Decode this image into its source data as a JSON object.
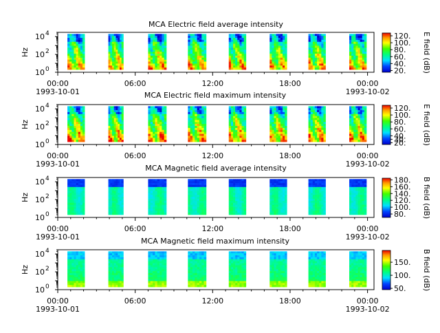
{
  "figure": {
    "background": "#ffffff"
  },
  "chart_data": [
    {
      "type": "heatmap",
      "title": "MCA  Electric field average intensity",
      "ylabel": "Hz",
      "y_scale": "log",
      "ylim": [
        1,
        30000
      ],
      "y_ticks": [
        1,
        100,
        10000
      ],
      "y_tick_labels": [
        {
          "base": "10",
          "exp": "0"
        },
        {
          "base": "10",
          "exp": "2"
        },
        {
          "base": "10",
          "exp": "4"
        }
      ],
      "x_ticks": [
        {
          "time": "00:00",
          "date": "1993-10-01"
        },
        {
          "time": "06:00",
          "date": ""
        },
        {
          "time": "12:00",
          "date": ""
        },
        {
          "time": "18:00",
          "date": ""
        },
        {
          "time": "00:00",
          "date": "1993-10-02"
        }
      ],
      "xlim": [
        "1993-10-01 00:00",
        "1993-10-02 00:30"
      ],
      "colorbar": {
        "label": "E field (dB)",
        "range": [
          15,
          128
        ],
        "ticks": [
          20,
          40,
          60,
          80,
          100,
          120
        ],
        "tick_labels": [
          "20.",
          "40.",
          "60.",
          "80.",
          "100.",
          "120."
        ]
      },
      "data_blocks": [
        {
          "start": "00:45",
          "end": "02:05"
        },
        {
          "start": "03:55",
          "end": "05:05"
        },
        {
          "start": "07:00",
          "end": "08:25"
        },
        {
          "start": "10:05",
          "end": "11:30"
        },
        {
          "start": "13:15",
          "end": "14:35"
        },
        {
          "start": "16:25",
          "end": "17:45"
        },
        {
          "start": "19:25",
          "end": "20:45"
        },
        {
          "start": "22:35",
          "end": "23:55"
        }
      ],
      "palette": "field_e_avg"
    },
    {
      "type": "heatmap",
      "title": "MCA  Electric field maximum intensity",
      "ylabel": "Hz",
      "y_scale": "log",
      "ylim": [
        1,
        30000
      ],
      "y_ticks": [
        1,
        100,
        10000
      ],
      "y_tick_labels": [
        {
          "base": "10",
          "exp": "0"
        },
        {
          "base": "10",
          "exp": "2"
        },
        {
          "base": "10",
          "exp": "4"
        }
      ],
      "x_ticks": [
        {
          "time": "00:00",
          "date": "1993-10-01"
        },
        {
          "time": "06:00",
          "date": ""
        },
        {
          "time": "12:00",
          "date": ""
        },
        {
          "time": "18:00",
          "date": ""
        },
        {
          "time": "00:00",
          "date": "1993-10-02"
        }
      ],
      "xlim": [
        "1993-10-01 00:00",
        "1993-10-02 00:30"
      ],
      "colorbar": {
        "label": "E field (dB)",
        "range": [
          15,
          128
        ],
        "ticks": [
          20,
          30,
          40,
          60,
          80,
          100,
          120
        ],
        "tick_labels": [
          "20.",
          "30.",
          "40.",
          "60.",
          "80.",
          "100.",
          "120."
        ]
      },
      "data_blocks": [
        {
          "start": "00:45",
          "end": "02:05"
        },
        {
          "start": "03:55",
          "end": "05:05"
        },
        {
          "start": "07:00",
          "end": "08:25"
        },
        {
          "start": "10:05",
          "end": "11:30"
        },
        {
          "start": "13:15",
          "end": "14:35"
        },
        {
          "start": "16:25",
          "end": "17:45"
        },
        {
          "start": "19:25",
          "end": "20:45"
        },
        {
          "start": "22:35",
          "end": "23:55"
        }
      ],
      "palette": "field_e_max"
    },
    {
      "type": "heatmap",
      "title": "MCA  Magnetic field average intensity",
      "ylabel": "Hz",
      "y_scale": "log",
      "ylim": [
        1,
        30000
      ],
      "y_ticks": [
        1,
        100,
        10000
      ],
      "y_tick_labels": [
        {
          "base": "10",
          "exp": "0"
        },
        {
          "base": "10",
          "exp": "2"
        },
        {
          "base": "10",
          "exp": "4"
        }
      ],
      "x_ticks": [
        {
          "time": "00:00",
          "date": "1993-10-01"
        },
        {
          "time": "06:00",
          "date": ""
        },
        {
          "time": "12:00",
          "date": ""
        },
        {
          "time": "18:00",
          "date": ""
        },
        {
          "time": "00:00",
          "date": "1993-10-02"
        }
      ],
      "xlim": [
        "1993-10-01 00:00",
        "1993-10-02 00:30"
      ],
      "colorbar": {
        "label": "B field (dB)",
        "range": [
          70,
          185
        ],
        "ticks": [
          80,
          100,
          120,
          140,
          160,
          180
        ],
        "tick_labels": [
          "80.",
          "100.",
          "120.",
          "140.",
          "160.",
          "180."
        ]
      },
      "data_blocks": [
        {
          "start": "00:45",
          "end": "02:05"
        },
        {
          "start": "03:55",
          "end": "05:05"
        },
        {
          "start": "07:00",
          "end": "08:25"
        },
        {
          "start": "10:05",
          "end": "11:30"
        },
        {
          "start": "13:15",
          "end": "14:35"
        },
        {
          "start": "16:25",
          "end": "17:45"
        },
        {
          "start": "19:25",
          "end": "20:45"
        },
        {
          "start": "22:35",
          "end": "23:55"
        }
      ],
      "palette": "field_b_avg"
    },
    {
      "type": "heatmap",
      "title": "MCA  Magnetic field maximum intensity",
      "ylabel": "Hz",
      "y_scale": "log",
      "ylim": [
        1,
        30000
      ],
      "y_ticks": [
        1,
        100,
        10000
      ],
      "y_tick_labels": [
        {
          "base": "10",
          "exp": "0"
        },
        {
          "base": "10",
          "exp": "2"
        },
        {
          "base": "10",
          "exp": "4"
        }
      ],
      "x_ticks": [
        {
          "time": "00:00",
          "date": "1993-10-01"
        },
        {
          "time": "06:00",
          "date": ""
        },
        {
          "time": "12:00",
          "date": ""
        },
        {
          "time": "18:00",
          "date": ""
        },
        {
          "time": "00:00",
          "date": "1993-10-02"
        }
      ],
      "xlim": [
        "1993-10-01 00:00",
        "1993-10-02 00:30"
      ],
      "colorbar": {
        "label": "B field (dB)",
        "range": [
          45,
          195
        ],
        "ticks": [
          50,
          100,
          150
        ],
        "tick_labels": [
          "50.",
          "100.",
          "150."
        ]
      },
      "data_blocks": [
        {
          "start": "00:45",
          "end": "02:05"
        },
        {
          "start": "03:55",
          "end": "05:05"
        },
        {
          "start": "07:00",
          "end": "08:25"
        },
        {
          "start": "10:05",
          "end": "11:30"
        },
        {
          "start": "13:15",
          "end": "14:35"
        },
        {
          "start": "16:25",
          "end": "17:45"
        },
        {
          "start": "19:25",
          "end": "20:45"
        },
        {
          "start": "22:35",
          "end": "23:55"
        }
      ],
      "palette": "field_b_max"
    }
  ]
}
